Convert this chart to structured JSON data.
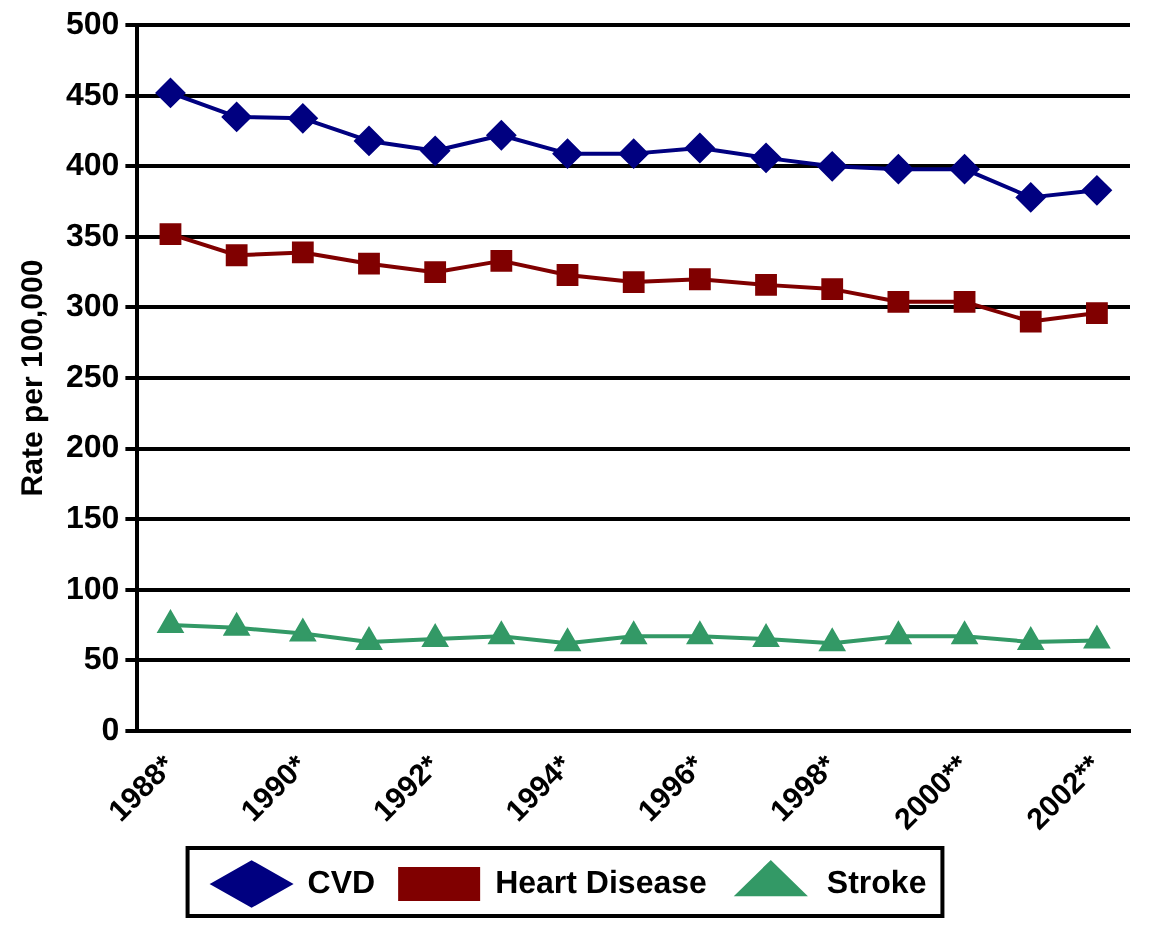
{
  "chart_data": {
    "type": "line",
    "ylabel": "Rate per 100,000",
    "categories": [
      "1988*",
      null,
      "1990*",
      null,
      "1992*",
      null,
      "1994*",
      null,
      "1996*",
      null,
      "1998*",
      null,
      "2000**",
      null,
      "2002**"
    ],
    "series": [
      {
        "name": "CVD",
        "color": "#000080",
        "marker": "diamond",
        "values": [
          452,
          435,
          434,
          418,
          411,
          422,
          409,
          409,
          413,
          406,
          400,
          398,
          398,
          378,
          383
        ]
      },
      {
        "name": "Heart Disease",
        "color": "#800000",
        "marker": "square",
        "values": [
          352,
          337,
          339,
          331,
          325,
          333,
          323,
          318,
          320,
          316,
          313,
          304,
          304,
          290,
          296
        ]
      },
      {
        "name": "Stroke",
        "color": "#339966",
        "marker": "triangle",
        "values": [
          75,
          73,
          69,
          63,
          65,
          67,
          62,
          67,
          67,
          65,
          62,
          67,
          67,
          63,
          64
        ]
      }
    ],
    "ylim": [
      0,
      500
    ],
    "yticks": [
      0,
      50,
      100,
      150,
      200,
      250,
      300,
      350,
      400,
      450,
      500
    ],
    "grid": "y",
    "legend": "bottom",
    "line_style": "solid"
  }
}
